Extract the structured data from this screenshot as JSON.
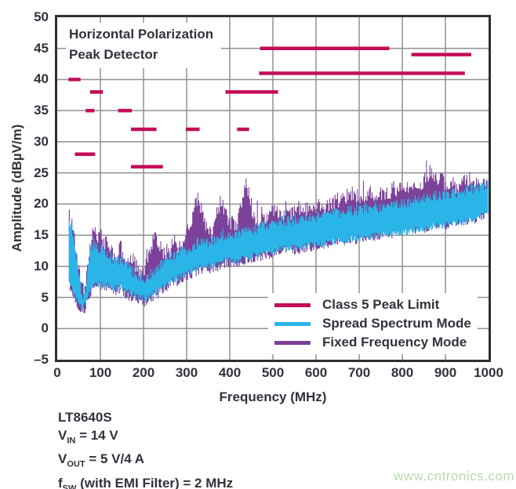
{
  "chart_data": {
    "type": "line",
    "title_lines": [
      "Horizontal Polarization",
      "Peak Detector"
    ],
    "x_axis": {
      "title": "Frequency (MHz)",
      "min": 0,
      "max": 1000,
      "tick_step": 100,
      "ticks": [
        0,
        100,
        200,
        300,
        400,
        500,
        600,
        700,
        800,
        900,
        1000
      ],
      "tick_labels": [
        "0",
        "100",
        "200",
        "300",
        "400",
        "500",
        "600",
        "700",
        "800",
        "900",
        "1000"
      ]
    },
    "y_axis": {
      "title": "Amplitude (dBµV/m)",
      "min": -5,
      "max": 50,
      "tick_step": 5,
      "ticks": [
        50,
        45,
        40,
        35,
        30,
        25,
        20,
        15,
        10,
        5,
        0,
        -5
      ],
      "tick_labels": [
        "50",
        "45",
        "40",
        "35",
        "30",
        "25",
        "20",
        "15",
        "10",
        "5",
        "0",
        "–5"
      ]
    },
    "grid": true,
    "legend": {
      "position": "inside-bottom-right",
      "items": [
        {
          "label": "Class 5 Peak Limit",
          "color": "#C30E56"
        },
        {
          "label": "Spread Spectrum Mode",
          "color": "#2AB5E8"
        },
        {
          "label": "Fixed Frequency Mode",
          "color": "#7C4199"
        }
      ]
    },
    "class5_peak_limit": {
      "label": "Class 5 Peak Limit",
      "color": "#C30E56",
      "segments_mhz_db": [
        [
          26,
          54,
          40
        ],
        [
          41,
          88,
          28
        ],
        [
          66,
          86,
          35
        ],
        [
          76,
          106,
          38
        ],
        [
          141,
          173,
          35
        ],
        [
          171,
          230,
          32
        ],
        [
          171,
          245,
          26
        ],
        [
          298,
          330,
          32
        ],
        [
          390,
          512,
          38
        ],
        [
          417,
          445,
          32
        ],
        [
          468,
          945,
          41
        ],
        [
          470,
          770,
          45
        ],
        [
          821,
          960,
          44
        ]
      ]
    },
    "series": [
      {
        "name": "Fixed Frequency Mode",
        "color": "#7C4199",
        "band": [
          [
            27,
            18,
            7.5
          ],
          [
            31,
            17.2,
            6.7
          ],
          [
            35,
            15.7,
            5.7
          ],
          [
            40,
            14,
            5
          ],
          [
            44,
            12,
            4.5
          ],
          [
            48,
            10,
            4
          ],
          [
            52,
            8,
            3.2
          ],
          [
            56,
            6.5,
            2.9
          ],
          [
            60,
            5.8,
            2.7
          ],
          [
            64,
            7.1,
            3.1
          ],
          [
            68,
            9.1,
            3.9
          ],
          [
            72,
            11.1,
            4.6
          ],
          [
            76,
            12.8,
            5.2
          ],
          [
            80,
            14,
            6
          ],
          [
            84,
            16.3,
            6.8
          ],
          [
            88,
            15,
            7.1
          ],
          [
            92,
            13.9,
            6.9
          ],
          [
            96,
            14.8,
            6.8
          ],
          [
            100,
            15.3,
            6.7
          ],
          [
            105,
            13.9,
            6.7
          ],
          [
            110,
            13.3,
            6.6
          ],
          [
            115,
            14.3,
            6.6
          ],
          [
            120,
            13.3,
            6.5
          ],
          [
            130,
            11.9,
            6.2
          ],
          [
            140,
            11.3,
            6.1
          ],
          [
            145,
            13.3,
            6.3
          ],
          [
            150,
            12.6,
            6.3
          ],
          [
            160,
            10.9,
            5.6
          ],
          [
            170,
            10.1,
            4.9
          ],
          [
            180,
            9.8,
            4.5
          ],
          [
            190,
            9,
            4.2
          ],
          [
            200,
            8.8,
            4.1
          ],
          [
            207,
            10.5,
            4.3
          ],
          [
            215,
            12.5,
            4.6
          ],
          [
            225,
            15,
            5
          ],
          [
            232,
            14,
            5.4
          ],
          [
            240,
            12.5,
            6
          ],
          [
            250,
            12.4,
            6.5
          ],
          [
            260,
            12.6,
            7
          ],
          [
            270,
            13.8,
            7.4
          ],
          [
            280,
            12.8,
            7.6
          ],
          [
            290,
            13.2,
            8
          ],
          [
            300,
            15.8,
            8.4
          ],
          [
            310,
            17.3,
            8.7
          ],
          [
            318,
            20.3,
            9
          ],
          [
            326,
            20.8,
            9.2
          ],
          [
            334,
            18.8,
            9.4
          ],
          [
            342,
            17,
            9.5
          ],
          [
            350,
            16,
            9.6
          ],
          [
            360,
            15.2,
            9.7
          ],
          [
            370,
            18.8,
            9.9
          ],
          [
            380,
            20.8,
            10.2
          ],
          [
            390,
            18.3,
            10.4
          ],
          [
            400,
            17.3,
            10.5
          ],
          [
            410,
            16.3,
            10.6
          ],
          [
            420,
            17.8,
            10.6
          ],
          [
            430,
            20.8,
            10.9
          ],
          [
            438,
            23.3,
            11
          ],
          [
            446,
            20,
            11.2
          ],
          [
            455,
            17.8,
            11.4
          ],
          [
            465,
            17,
            11.5
          ],
          [
            475,
            17.2,
            11.6
          ],
          [
            488,
            18.3,
            11.8
          ],
          [
            500,
            19.3,
            12
          ],
          [
            515,
            18,
            12.2
          ],
          [
            530,
            18.2,
            12.5
          ],
          [
            545,
            18.4,
            12.6
          ],
          [
            560,
            19.4,
            12.8
          ],
          [
            575,
            19,
            13
          ],
          [
            590,
            19.2,
            13.2
          ],
          [
            605,
            19.8,
            13.3
          ],
          [
            620,
            19.9,
            13.6
          ],
          [
            640,
            20.3,
            13.8
          ],
          [
            660,
            20.9,
            14
          ],
          [
            680,
            21.4,
            14.2
          ],
          [
            700,
            21,
            14.4
          ],
          [
            720,
            21.9,
            14.6
          ],
          [
            740,
            21.4,
            14.9
          ],
          [
            760,
            21.9,
            15.1
          ],
          [
            780,
            22.1,
            15.3
          ],
          [
            800,
            22.4,
            15.5
          ],
          [
            820,
            22.4,
            15.9
          ],
          [
            840,
            22.9,
            16
          ],
          [
            858,
            24.8,
            16.2
          ],
          [
            868,
            25.2,
            16.3
          ],
          [
            880,
            24.3,
            16.4
          ],
          [
            900,
            23.3,
            16.6
          ],
          [
            920,
            22.9,
            16.9
          ],
          [
            940,
            23.4,
            17.1
          ],
          [
            958,
            24,
            17.4
          ],
          [
            975,
            23,
            17.8
          ],
          [
            1000,
            23.5,
            18.4
          ]
        ]
      },
      {
        "name": "Spread Spectrum Mode",
        "color": "#2AB5E8",
        "band": [
          [
            27,
            17.5,
            8
          ],
          [
            31,
            16.8,
            7.2
          ],
          [
            35,
            15.2,
            6.2
          ],
          [
            40,
            13.5,
            5.5
          ],
          [
            44,
            11.5,
            5
          ],
          [
            48,
            9.5,
            4.3
          ],
          [
            52,
            7.5,
            3.7
          ],
          [
            56,
            6,
            3.3
          ],
          [
            60,
            5.2,
            3.1
          ],
          [
            64,
            6.3,
            3.6
          ],
          [
            68,
            8.4,
            4.3
          ],
          [
            72,
            10.4,
            5
          ],
          [
            76,
            12,
            5.6
          ],
          [
            80,
            13.2,
            6.4
          ],
          [
            84,
            14.2,
            7.2
          ],
          [
            88,
            13.8,
            7.5
          ],
          [
            92,
            13.1,
            7.3
          ],
          [
            96,
            12.7,
            7.1
          ],
          [
            100,
            12.5,
            7
          ],
          [
            110,
            12.1,
            7
          ],
          [
            120,
            11.7,
            6.9
          ],
          [
            130,
            11.1,
            6.6
          ],
          [
            140,
            10.7,
            6.5
          ],
          [
            150,
            11,
            6.8
          ],
          [
            160,
            10.2,
            6.2
          ],
          [
            170,
            9.3,
            5.7
          ],
          [
            180,
            9,
            5.4
          ],
          [
            190,
            8.4,
            5
          ],
          [
            200,
            8,
            4.8
          ],
          [
            210,
            8.2,
            4.9
          ],
          [
            220,
            8.8,
            5.2
          ],
          [
            230,
            9.6,
            5.7
          ],
          [
            240,
            10.4,
            6.3
          ],
          [
            250,
            11,
            6.8
          ],
          [
            260,
            11.4,
            7.3
          ],
          [
            270,
            11.8,
            7.8
          ],
          [
            280,
            12.1,
            8
          ],
          [
            290,
            12.4,
            8.4
          ],
          [
            300,
            12.8,
            8.8
          ],
          [
            310,
            13.1,
            9.1
          ],
          [
            320,
            13.5,
            9.4
          ],
          [
            330,
            14.1,
            9.8
          ],
          [
            340,
            14,
            9.9
          ],
          [
            350,
            13.9,
            10
          ],
          [
            360,
            14.1,
            10.1
          ],
          [
            375,
            14.5,
            10.3
          ],
          [
            390,
            15,
            10.8
          ],
          [
            405,
            15.1,
            10.9
          ],
          [
            420,
            15.4,
            11
          ],
          [
            435,
            15.8,
            11.3
          ],
          [
            450,
            16,
            11.7
          ],
          [
            465,
            16.1,
            11.9
          ],
          [
            480,
            16.4,
            12
          ],
          [
            500,
            16.9,
            12.4
          ],
          [
            525,
            17.2,
            12.7
          ],
          [
            550,
            17.5,
            13
          ],
          [
            575,
            17.7,
            13.2
          ],
          [
            600,
            18,
            13.5
          ],
          [
            625,
            18.3,
            13.7
          ],
          [
            650,
            18.6,
            14
          ],
          [
            675,
            18.8,
            14.2
          ],
          [
            700,
            19.1,
            14.5
          ],
          [
            725,
            19.4,
            14.7
          ],
          [
            750,
            19.6,
            15
          ],
          [
            775,
            19.9,
            15.2
          ],
          [
            800,
            20.2,
            15.5
          ],
          [
            825,
            20.5,
            15.8
          ],
          [
            850,
            20.9,
            16.1
          ],
          [
            875,
            21.3,
            16.4
          ],
          [
            900,
            21.6,
            16.6
          ],
          [
            925,
            21.9,
            16.9
          ],
          [
            950,
            22.3,
            17.2
          ],
          [
            975,
            22.6,
            17.7
          ],
          [
            1000,
            23,
            18.5
          ]
        ]
      }
    ]
  },
  "conditions": {
    "lines": [
      {
        "pre": "LT8640S",
        "sub": "",
        "post": ""
      },
      {
        "pre": "V",
        "sub": "IN",
        "post": " = 14 V"
      },
      {
        "pre": "V",
        "sub": "OUT",
        "post": " = 5 V/4 A"
      },
      {
        "pre": "f",
        "sub": "SW",
        "post": " (with EMI Filter) = 2 MHz"
      }
    ]
  },
  "watermark": {
    "text": "www.cntronics.com",
    "color": "#BCD9AC"
  },
  "colors": {
    "text": "#32323C",
    "grid": "#909095",
    "axis_border": "#2E2E36",
    "background": "#FFFFFF"
  }
}
